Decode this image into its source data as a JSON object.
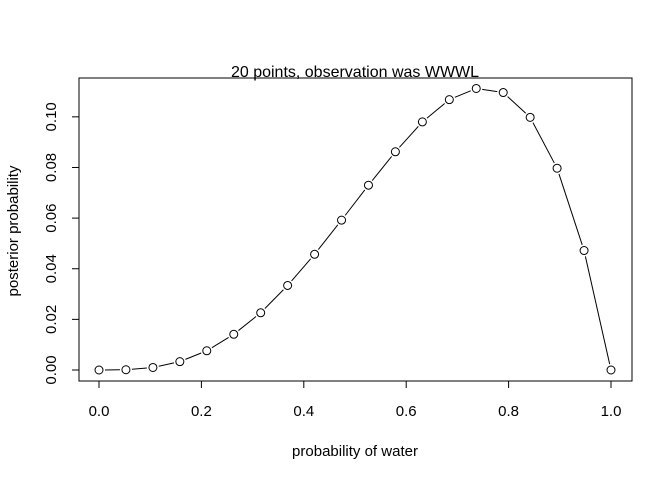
{
  "chart_data": {
    "type": "line",
    "title": "20 points, observation was WWWL",
    "xlabel": "probability of water",
    "ylabel": "posterior probability",
    "xlim": [
      0,
      1
    ],
    "ylim": [
      0,
      0.111
    ],
    "x_ticks": [
      0.0,
      0.2,
      0.4,
      0.6,
      0.8,
      1.0
    ],
    "x_tick_labels": [
      "0.0",
      "0.2",
      "0.4",
      "0.6",
      "0.8",
      "1.0"
    ],
    "y_ticks": [
      0.0,
      0.02,
      0.04,
      0.06,
      0.08,
      0.1
    ],
    "y_tick_labels": [
      "0.00",
      "0.02",
      "0.04",
      "0.06",
      "0.08",
      "0.10"
    ],
    "grid": false,
    "markers": "open-circle",
    "series": [
      {
        "x": [
          0.0,
          0.0526,
          0.1053,
          0.1579,
          0.2105,
          0.2632,
          0.3158,
          0.3684,
          0.4211,
          0.4737,
          0.5263,
          0.5789,
          0.6316,
          0.6842,
          0.7368,
          0.7895,
          0.8421,
          0.8947,
          0.9474,
          1.0
        ],
        "values": [
          0.0,
          0.0001,
          0.001,
          0.0033,
          0.0076,
          0.0141,
          0.0226,
          0.0334,
          0.0457,
          0.0592,
          0.073,
          0.0862,
          0.098,
          0.1068,
          0.1112,
          0.1096,
          0.0998,
          0.0797,
          0.0472,
          0.0
        ]
      }
    ]
  }
}
